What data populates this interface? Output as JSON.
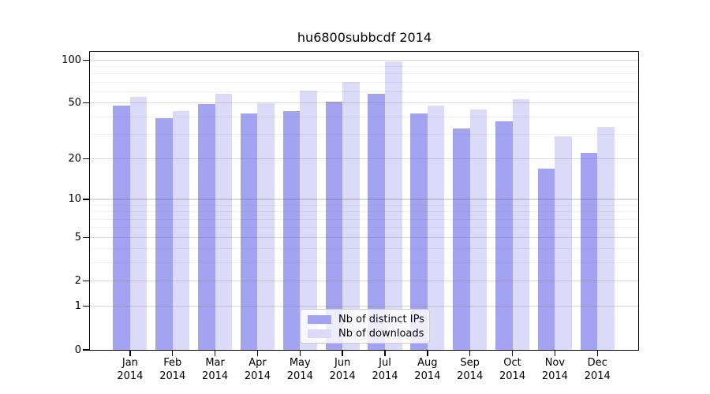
{
  "chart_data": {
    "type": "bar",
    "title": "hu6800subbcdf 2014",
    "scale": "log1p",
    "categories": [
      "Jan 2014",
      "Feb 2014",
      "Mar 2014",
      "Apr 2014",
      "May 2014",
      "Jun 2014",
      "Jul 2014",
      "Aug 2014",
      "Sep 2014",
      "Oct 2014",
      "Nov 2014",
      "Dec 2014"
    ],
    "series": [
      {
        "name": "Nb of distinct IPs",
        "color": "#a3a3f2",
        "values": [
          48,
          39,
          49,
          42,
          44,
          51,
          58,
          42,
          33,
          37,
          17,
          22
        ]
      },
      {
        "name": "Nb of downloads",
        "color": "#dbdbf9",
        "values": [
          55,
          44,
          58,
          50,
          61,
          70,
          98,
          48,
          45,
          53,
          29,
          34
        ]
      }
    ],
    "xlabel": "",
    "ylabel": "",
    "ylim": [
      0,
      114
    ],
    "y_ticks": [
      0,
      1,
      2,
      5,
      10,
      20,
      50,
      100
    ],
    "y_minor_ticks": [
      3,
      4,
      6,
      7,
      8,
      9,
      30,
      40,
      60,
      70,
      80,
      90
    ],
    "grid": true,
    "legend_position": "bottom-center"
  },
  "legend": {
    "entries": [
      {
        "label": "Nb of distinct IPs",
        "color": "#a3a3f2"
      },
      {
        "label": "Nb of downloads",
        "color": "#dbdbf9"
      }
    ]
  }
}
